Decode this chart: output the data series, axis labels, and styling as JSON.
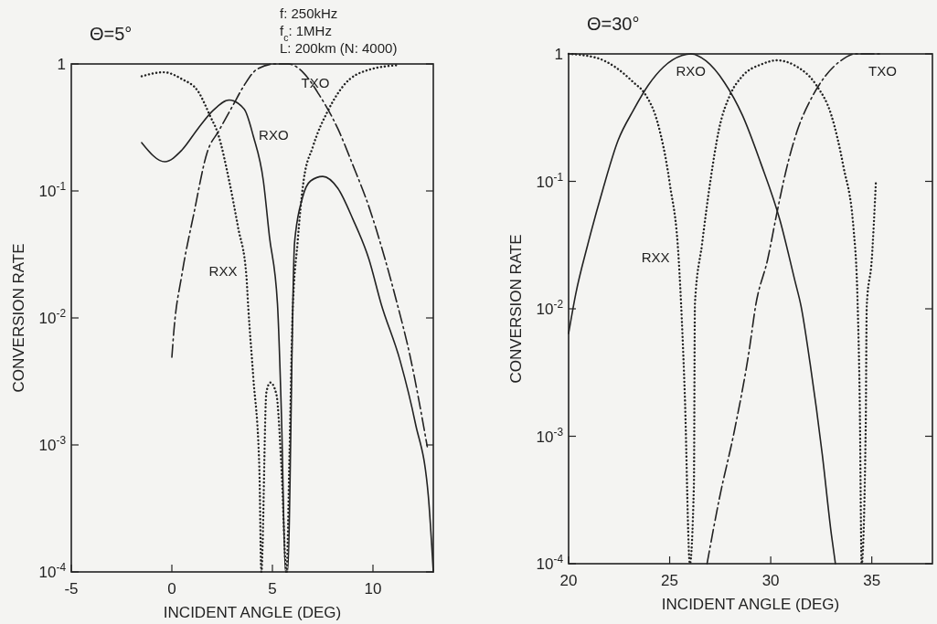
{
  "chart_data": [
    {
      "type": "line",
      "title": "Θ=5°",
      "annotations": [
        "f: 250kHz",
        "f$_{c}$: 1MHz",
        "L: 200km (N: 4000)"
      ],
      "xlabel": "INCIDENT ANGLE (DEG)",
      "ylabel": "CONVERSION RATE",
      "log": true,
      "grid": false,
      "marker": "none",
      "xlim": [
        -5,
        13
      ],
      "xticks": [
        -5,
        0,
        5,
        10
      ],
      "ylim": [
        0.0001,
        1
      ],
      "yticks": [
        {
          "value": 0.0001,
          "label": "10$^{-4}$"
        },
        {
          "value": 0.001,
          "label": "10$^{-3}$"
        },
        {
          "value": 0.01,
          "label": "10$^{-2}$"
        },
        {
          "value": 0.1,
          "label": "10$^{-1}$"
        },
        1
      ],
      "series": [
        {
          "name": "RXO",
          "color": "#222222",
          "line_style": "solid",
          "x": [
            -1.5,
            -0.35,
            0.5,
            1.3,
            2.05,
            2.85,
            3.6,
            4.05,
            4.55,
            4.85,
            5.25,
            5.45,
            5.65,
            5.75,
            6.1,
            6.5,
            6.9,
            7.5,
            8.25,
            9.0,
            9.8,
            10.4,
            11.35,
            12.1,
            12.75,
            13
          ],
          "values": [
            0.24,
            0.17,
            0.21,
            0.31,
            0.43,
            0.52,
            0.44,
            0.27,
            0.12,
            0.044,
            0.013,
            0.0017,
            0.0001,
            0.0001,
            0.039,
            0.089,
            0.12,
            0.13,
            0.105,
            0.06,
            0.029,
            0.013,
            0.0046,
            0.0015,
            0.0004,
            0.0001
          ]
        },
        {
          "name": "TXO",
          "color": "#222222",
          "line_style": "dashed",
          "x": [
            0,
            0.1,
            0.5,
            1.1,
            1.75,
            2.35,
            3.0,
            3.6,
            4.2,
            5.1,
            5.8,
            6.55,
            7.3,
            8.25,
            9.0,
            9.8,
            10.55,
            11.2,
            11.8,
            12.7
          ],
          "values": [
            0.0049,
            0.0079,
            0.022,
            0.067,
            0.2,
            0.3,
            0.46,
            0.68,
            0.9,
            1,
            1,
            0.85,
            0.58,
            0.31,
            0.16,
            0.075,
            0.031,
            0.013,
            0.0054,
            0.00097
          ]
        },
        {
          "name": "RXX",
          "color": "#222222",
          "line_style": "dotted",
          "x": [
            -1.5,
            -0.4,
            0.5,
            1.3,
            1.9,
            2.3,
            2.85,
            3.3,
            3.7,
            3.8,
            4.05,
            4.35,
            4.45,
            4.7,
            4.9,
            5.2,
            5.45,
            5.7,
            5.85,
            6.0,
            6.25,
            6.55,
            7.0,
            7.8,
            8.55,
            9.8,
            11.3
          ],
          "values": [
            0.8,
            0.86,
            0.76,
            0.61,
            0.39,
            0.28,
            0.12,
            0.051,
            0.022,
            0.012,
            0.0034,
            0.00066,
            0.0001,
            0.0026,
            0.0031,
            0.0025,
            0.00066,
            0.0001,
            0.00087,
            0.0104,
            0.039,
            0.12,
            0.22,
            0.44,
            0.68,
            0.9,
            0.98
          ]
        }
      ]
    },
    {
      "type": "line",
      "title": "Θ=30°",
      "xlabel": "INCIDENT ANGLE (DEG)",
      "ylabel": "CONVERSION RATE",
      "log": true,
      "grid": false,
      "marker": "none",
      "xlim": [
        20,
        38
      ],
      "xticks": [
        20,
        25,
        30,
        35
      ],
      "ylim": [
        0.0001,
        1
      ],
      "yticks": [
        {
          "value": 0.0001,
          "label": "10$^{-4}$"
        },
        {
          "value": 0.001,
          "label": "10$^{-3}$"
        },
        {
          "value": 0.01,
          "label": "10$^{-2}$"
        },
        {
          "value": 0.1,
          "label": "10$^{-1}$"
        },
        1
      ],
      "series": [
        {
          "name": "RXO",
          "color": "#222222",
          "line_style": "solid",
          "x": [
            20,
            20.35,
            20.95,
            21.7,
            22.45,
            23.2,
            23.95,
            24.7,
            25.6,
            26.05,
            26.8,
            27.7,
            28.6,
            29.5,
            30.45,
            31.2,
            31.5,
            31.95,
            32.55,
            33.0,
            33.2
          ],
          "values": [
            0.0064,
            0.013,
            0.032,
            0.087,
            0.21,
            0.36,
            0.57,
            0.79,
            0.97,
            1,
            0.88,
            0.6,
            0.33,
            0.14,
            0.05,
            0.0165,
            0.0105,
            0.0037,
            0.00072,
            0.00017,
            0.0001
          ]
        },
        {
          "name": "TXO",
          "color": "#222222",
          "line_style": "dashed",
          "x": [
            26.85,
            27.45,
            28.2,
            28.95,
            29.25,
            29.85,
            30.3,
            30.75,
            31.35,
            31.95,
            32.7,
            33.45,
            34.2,
            35.5
          ],
          "values": [
            0.0001,
            0.00032,
            0.0011,
            0.0049,
            0.0105,
            0.0245,
            0.056,
            0.12,
            0.26,
            0.43,
            0.67,
            0.88,
            1,
            1
          ]
        },
        {
          "name": "RXX",
          "color": "#222222",
          "line_style": "dotted",
          "x": [
            20,
            21.4,
            22.3,
            23.2,
            23.8,
            24.4,
            25.0,
            25.45,
            25.75,
            26.0,
            26.2,
            26.25,
            26.6,
            27.0,
            27.45,
            28.0,
            28.6,
            29.55,
            30.3,
            31.2,
            32.25,
            33.0,
            33.6,
            34.1,
            34.3,
            34.4,
            34.5,
            34.7,
            34.75,
            35.0,
            35.2
          ],
          "values": [
            1,
            0.93,
            0.79,
            0.6,
            0.48,
            0.29,
            0.097,
            0.024,
            0.0021,
            0.0001,
            0.00042,
            0.011,
            0.032,
            0.097,
            0.26,
            0.48,
            0.67,
            0.83,
            0.89,
            0.81,
            0.57,
            0.33,
            0.13,
            0.042,
            0.011,
            0.0021,
            0.0001,
            0.0012,
            0.0105,
            0.0245,
            0.097
          ]
        }
      ]
    }
  ]
}
